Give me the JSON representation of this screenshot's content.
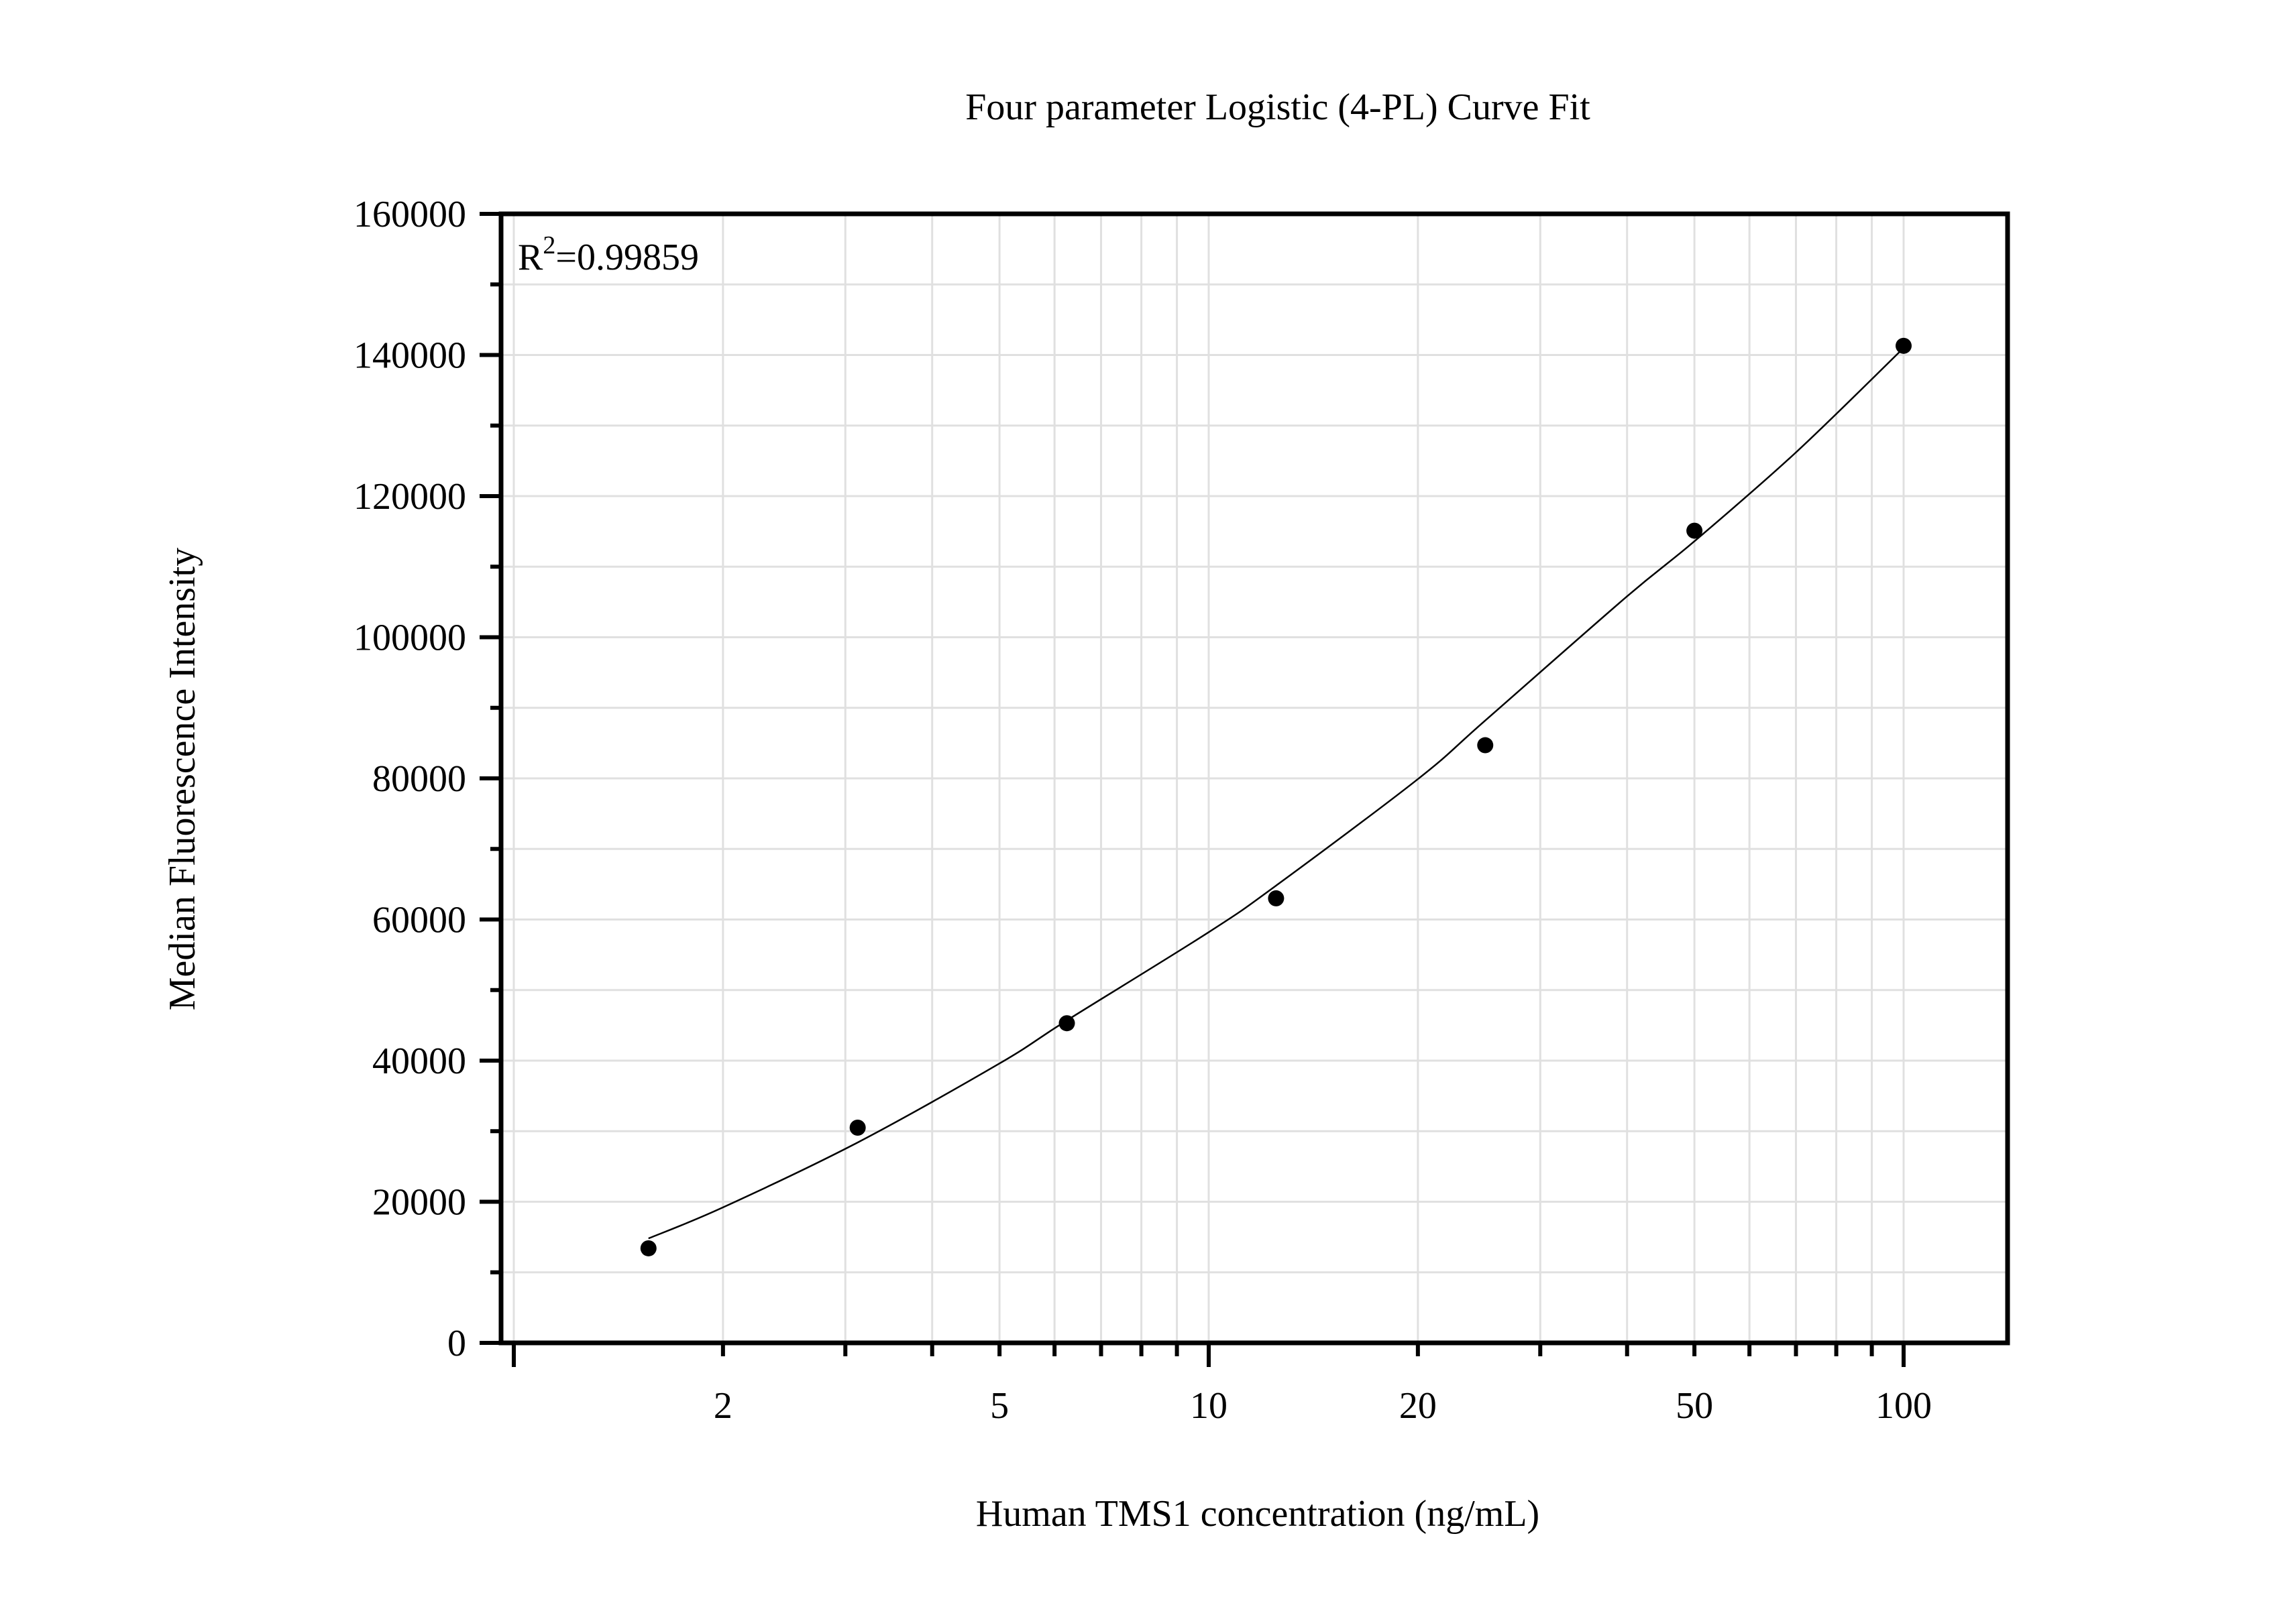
{
  "chart_data": {
    "type": "scatter",
    "title": "Four parameter Logistic (4-PL) Curve Fit",
    "xlabel": "Human TMS1 concentration (ng/mL)",
    "ylabel": "Median Fluorescence Intensity",
    "xscale": "log",
    "xlim": [
      1.32,
      115.8
    ],
    "ylim": [
      0,
      160000
    ],
    "x_ticks": [
      2,
      5,
      10,
      20,
      50,
      100
    ],
    "x_tick_labels": [
      "2",
      "5",
      "10",
      "20",
      "50",
      "100"
    ],
    "y_ticks": [
      0,
      20000,
      40000,
      60000,
      80000,
      100000,
      120000,
      140000,
      160000
    ],
    "y_tick_labels": [
      "0",
      "20000",
      "40000",
      "60000",
      "80000",
      "100000",
      "120000",
      "140000",
      "160000"
    ],
    "grid": true,
    "legend": null,
    "annotation": {
      "text": "R",
      "sup": "2",
      "value": "=0.99859",
      "r_squared": 0.99859
    },
    "series": [
      {
        "name": "Standards",
        "kind": "points",
        "x": [
          1.5625,
          3.125,
          6.25,
          12.5,
          25,
          50,
          100
        ],
        "y": [
          13400,
          30500,
          45300,
          63000,
          84700,
          115100,
          141300
        ]
      },
      {
        "name": "4-PL fit",
        "kind": "line",
        "x": [
          1.5625,
          2,
          3.125,
          5,
          6.25,
          10,
          12.5,
          20,
          25,
          40,
          50,
          70,
          100
        ],
        "y": [
          14800,
          19200,
          28400,
          39600,
          45700,
          58200,
          64800,
          79900,
          88200,
          105800,
          113600,
          126200,
          141000
        ]
      }
    ]
  },
  "figure": {
    "title": "Four parameter Logistic (4-PL) Curve Fit",
    "xlabel": "Human TMS1 concentration (ng/mL)",
    "ylabel": "Median Fluorescence Intensity",
    "r2_prefix": "R",
    "r2_sup": "2",
    "r2_value": "=0.99859"
  }
}
